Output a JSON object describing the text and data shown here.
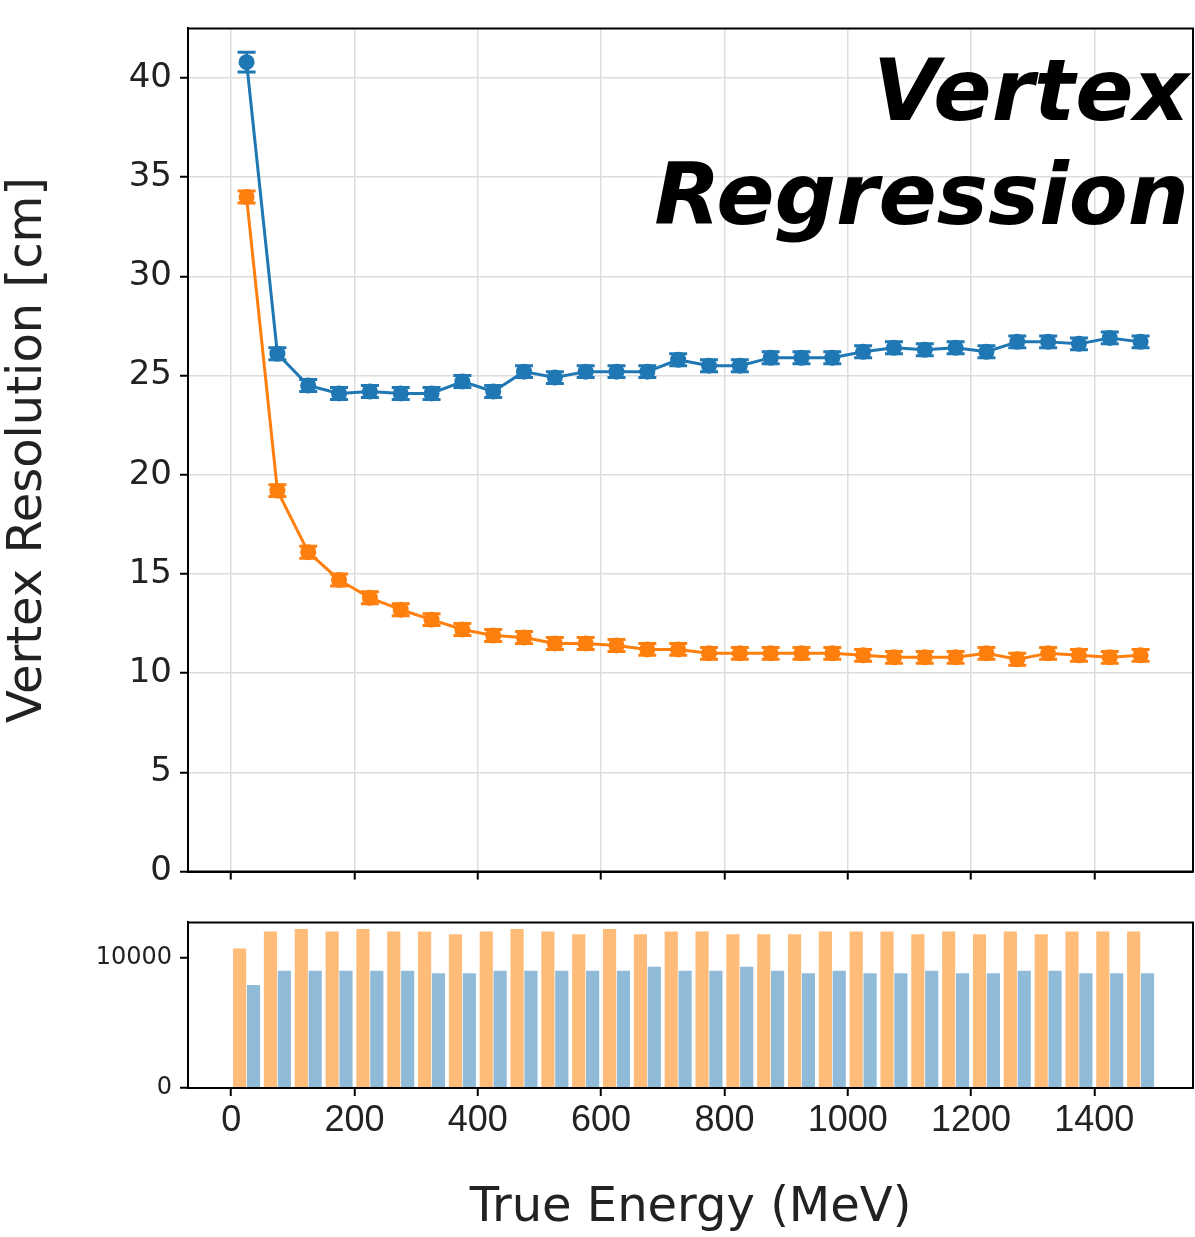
{
  "chart_data": [
    {
      "type": "line",
      "title": "Vertex Regression",
      "ylabel": "Vertex Resolution [cm]",
      "x": [
        25,
        75,
        125,
        175,
        225,
        275,
        325,
        375,
        425,
        475,
        525,
        575,
        625,
        675,
        725,
        775,
        825,
        875,
        925,
        975,
        1025,
        1075,
        1125,
        1175,
        1225,
        1275,
        1325,
        1375,
        1425,
        1475
      ],
      "xlim": [
        -70,
        1560
      ],
      "xticks": [
        0,
        200,
        400,
        600,
        800,
        1000,
        1200,
        1400
      ],
      "ylim": [
        0,
        42.5
      ],
      "yticks": [
        0,
        5,
        10,
        15,
        20,
        25,
        30,
        35,
        40
      ],
      "grid": true,
      "marker": "circle",
      "tick_labels": "y",
      "legend": false,
      "series": [
        {
          "color": "#1f77b4",
          "values": [
            40.8,
            26.1,
            24.5,
            24.1,
            24.2,
            24.1,
            24.1,
            24.7,
            24.2,
            25.2,
            24.9,
            25.2,
            25.2,
            25.2,
            25.8,
            25.5,
            25.5,
            25.9,
            25.9,
            25.9,
            26.2,
            26.4,
            26.3,
            26.4,
            26.2,
            26.7,
            26.7,
            26.6,
            26.9,
            26.7
          ],
          "errors": [
            0.5,
            0.3,
            0.3,
            0.3,
            0.3,
            0.3,
            0.3,
            0.3,
            0.3,
            0.3,
            0.3,
            0.3,
            0.3,
            0.3,
            0.3,
            0.3,
            0.3,
            0.3,
            0.3,
            0.3,
            0.3,
            0.3,
            0.3,
            0.3,
            0.3,
            0.3,
            0.3,
            0.3,
            0.3,
            0.3
          ]
        },
        {
          "color": "#ff7f0e",
          "values": [
            34.0,
            19.2,
            16.1,
            14.7,
            13.8,
            13.2,
            12.7,
            12.2,
            11.9,
            11.8,
            11.5,
            11.5,
            11.4,
            11.2,
            11.2,
            11.0,
            11.0,
            11.0,
            11.0,
            11.0,
            10.9,
            10.8,
            10.8,
            10.8,
            11.0,
            10.7,
            11.0,
            10.9,
            10.8,
            10.9
          ],
          "errors": [
            0.3,
            0.3,
            0.3,
            0.3,
            0.3,
            0.3,
            0.3,
            0.3,
            0.3,
            0.3,
            0.3,
            0.3,
            0.3,
            0.3,
            0.3,
            0.3,
            0.3,
            0.3,
            0.3,
            0.3,
            0.3,
            0.3,
            0.3,
            0.3,
            0.3,
            0.3,
            0.3,
            0.3,
            0.3,
            0.3
          ]
        }
      ]
    },
    {
      "type": "bar",
      "xlabel": "True Energy (MeV)",
      "x": [
        25,
        75,
        125,
        175,
        225,
        275,
        325,
        375,
        425,
        475,
        525,
        575,
        625,
        675,
        725,
        775,
        825,
        875,
        925,
        975,
        1025,
        1075,
        1125,
        1175,
        1225,
        1275,
        1325,
        1375,
        1425,
        1475
      ],
      "xlim": [
        -70,
        1560
      ],
      "xticks": [
        0,
        200,
        400,
        600,
        800,
        1000,
        1200,
        1400
      ],
      "ylim": [
        0,
        12700
      ],
      "yticks": [
        0,
        10000
      ],
      "grid": false,
      "legend": false,
      "series": [
        {
          "color": "#ffbb78",
          "values": [
            10700,
            12000,
            12200,
            12000,
            12200,
            12000,
            12000,
            11800,
            12000,
            12200,
            12000,
            11800,
            12200,
            11800,
            12000,
            12000,
            11800,
            11800,
            11800,
            12000,
            12000,
            12000,
            11800,
            12000,
            11800,
            12000,
            11800,
            12000,
            12000,
            12000
          ]
        },
        {
          "color": "#8fbbd9",
          "values": [
            7900,
            9000,
            9000,
            9000,
            9000,
            9000,
            8800,
            8800,
            9000,
            9000,
            9000,
            9000,
            9000,
            9300,
            9000,
            9000,
            9300,
            9000,
            8800,
            9000,
            8800,
            8800,
            9000,
            8800,
            8800,
            9000,
            9000,
            8800,
            8800,
            8800
          ]
        }
      ]
    }
  ]
}
